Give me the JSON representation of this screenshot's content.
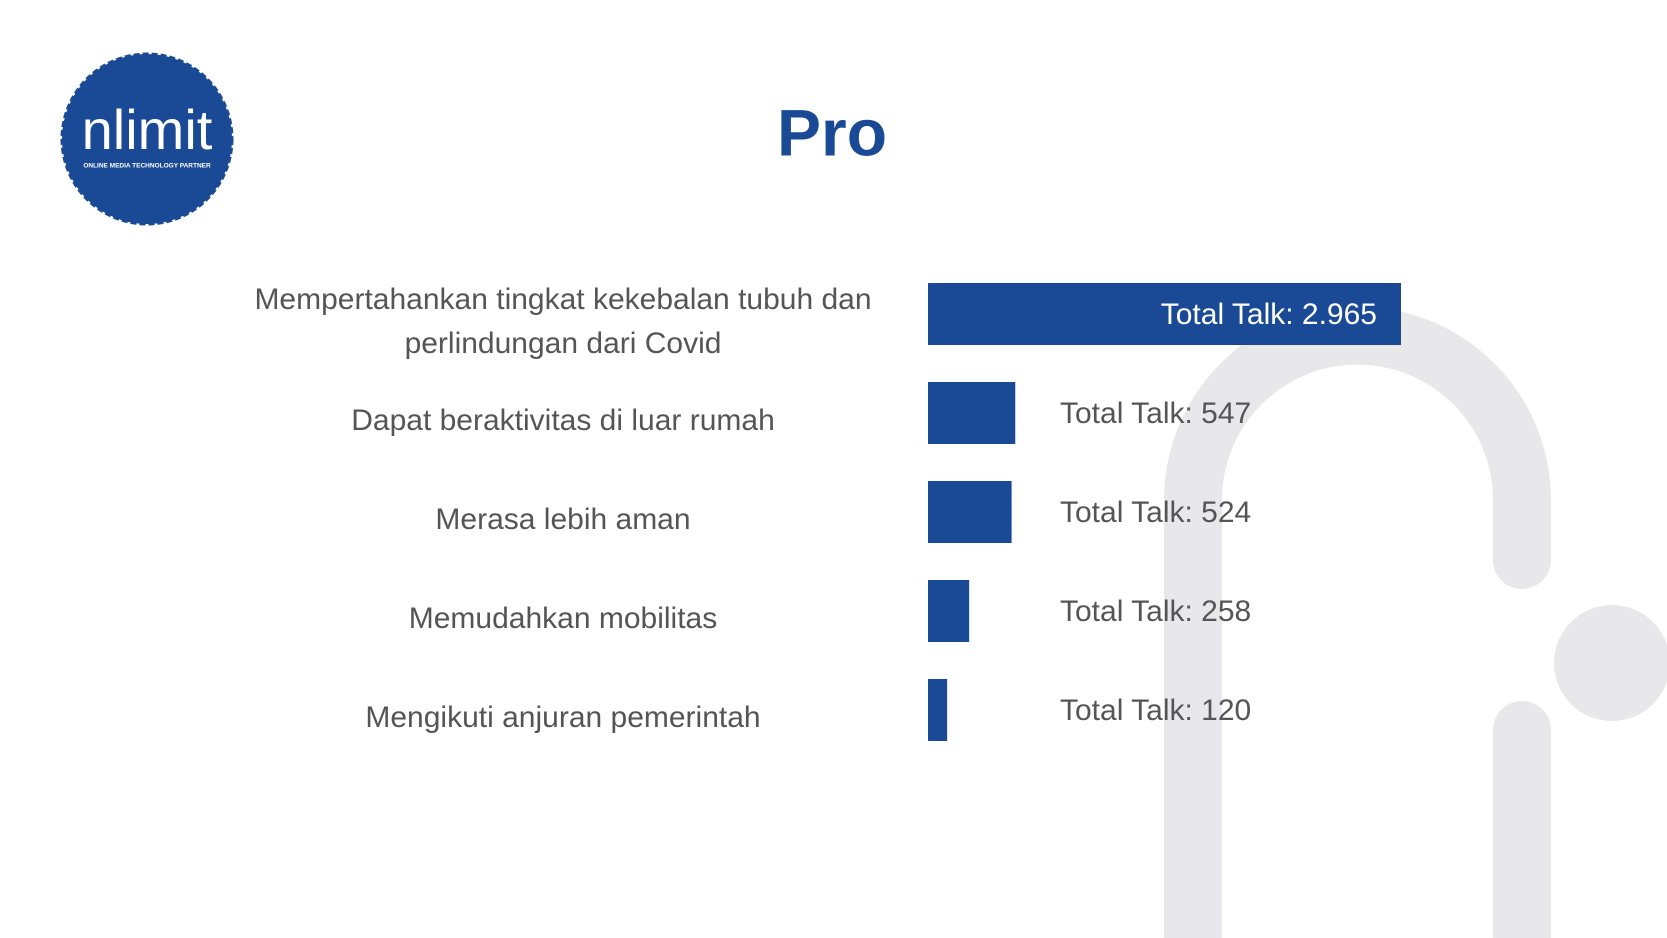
{
  "logo": {
    "name": "nlimit",
    "tagline": "ONLINE MEDIA TECHNOLOGY PARTNER"
  },
  "chart_data": {
    "type": "bar",
    "orientation": "horizontal",
    "title": "Pro",
    "categories": [
      "Mempertahankan tingkat kekebalan tubuh dan perlindungan dari Covid",
      "Dapat beraktivitas di luar rumah",
      "Merasa lebih aman",
      "Memudahkan mobilitas",
      "Mengikuti anjuran pemerintah"
    ],
    "values": [
      2965,
      547,
      524,
      258,
      120
    ],
    "value_labels": [
      "Total Talk: 2.965",
      "Total Talk: 547",
      "Total Talk: 524",
      "Total Talk: 258",
      "Total Talk: 120"
    ],
    "color": "#1a4a96"
  }
}
